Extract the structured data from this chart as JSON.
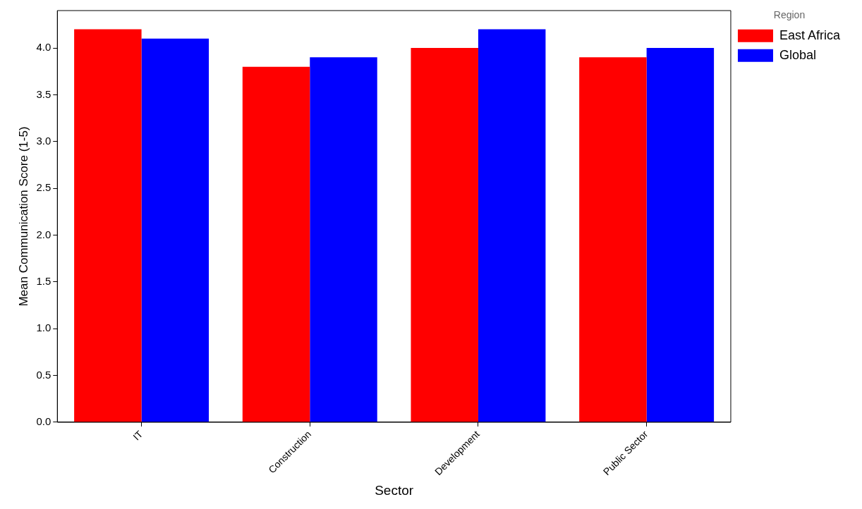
{
  "chart_data": {
    "type": "bar",
    "xlabel": "Sector",
    "ylabel": "Mean Communication Score (1-5)",
    "legend_title": "Region",
    "categories": [
      "IT",
      "Construction",
      "Development",
      "Public Sector"
    ],
    "series": [
      {
        "name": "East Africa",
        "color": "#ff0000",
        "values": [
          4.2,
          3.8,
          4.0,
          3.9
        ]
      },
      {
        "name": "Global",
        "color": "#0000ff",
        "values": [
          4.1,
          3.9,
          4.2,
          4.0
        ]
      }
    ],
    "ylim": [
      0,
      4.4
    ],
    "yticks": [
      {
        "value": 0,
        "label": "0.0"
      },
      0.5,
      {
        "value": 1,
        "label": "1.0"
      },
      1.5,
      {
        "value": 2,
        "label": "2.0"
      },
      2.5,
      {
        "value": 3,
        "label": "3.0"
      },
      3.5,
      {
        "value": 4,
        "label": "4.0"
      }
    ],
    "grid": false,
    "legend": "top right"
  }
}
